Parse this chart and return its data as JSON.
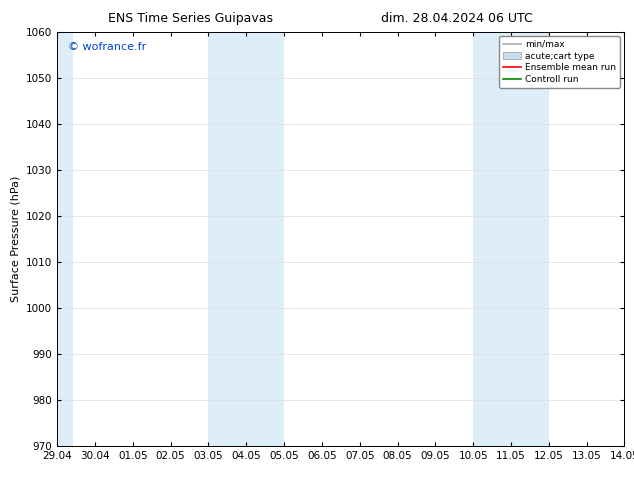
{
  "title_left": "ENS Time Series Guipavas",
  "title_right": "dim. 28.04.2024 06 UTC",
  "ylabel": "Surface Pressure (hPa)",
  "ylim": [
    970,
    1060
  ],
  "yticks": [
    970,
    980,
    990,
    1000,
    1010,
    1020,
    1030,
    1040,
    1050,
    1060
  ],
  "xlim_start": 0,
  "xlim_end": 15,
  "xtick_labels": [
    "29.04",
    "30.04",
    "01.05",
    "02.05",
    "03.05",
    "04.05",
    "05.05",
    "06.05",
    "07.05",
    "08.05",
    "09.05",
    "10.05",
    "11.05",
    "12.05",
    "13.05",
    "14.05"
  ],
  "xtick_positions": [
    0,
    1,
    2,
    3,
    4,
    5,
    6,
    7,
    8,
    9,
    10,
    11,
    12,
    13,
    14,
    15
  ],
  "shaded_bands": [
    {
      "x_start": 0,
      "x_end": 0.42,
      "color": "#ddeef8"
    },
    {
      "x_start": 4.0,
      "x_end": 6.0,
      "color": "#ddeef8"
    },
    {
      "x_start": 11.0,
      "x_end": 13.0,
      "color": "#ddeef8"
    }
  ],
  "watermark_text": "© wofrance.fr",
  "watermark_color": "#0044cc",
  "bg_color": "#ffffff",
  "plot_bg_color": "#ffffff",
  "grid_color": "#dddddd",
  "legend_items": [
    {
      "label": "min/max",
      "color": "#aaaaaa",
      "lw": 1.2,
      "linestyle": "-"
    },
    {
      "label": "acute;cart type",
      "color": "#ccdded",
      "lw": 6,
      "linestyle": "-"
    },
    {
      "label": "Ensemble mean run",
      "color": "#ff0000",
      "lw": 1.2,
      "linestyle": "-"
    },
    {
      "label": "Controll run",
      "color": "#008800",
      "lw": 1.2,
      "linestyle": "-"
    }
  ],
  "title_fontsize": 9,
  "axis_label_fontsize": 8,
  "tick_fontsize": 7.5
}
